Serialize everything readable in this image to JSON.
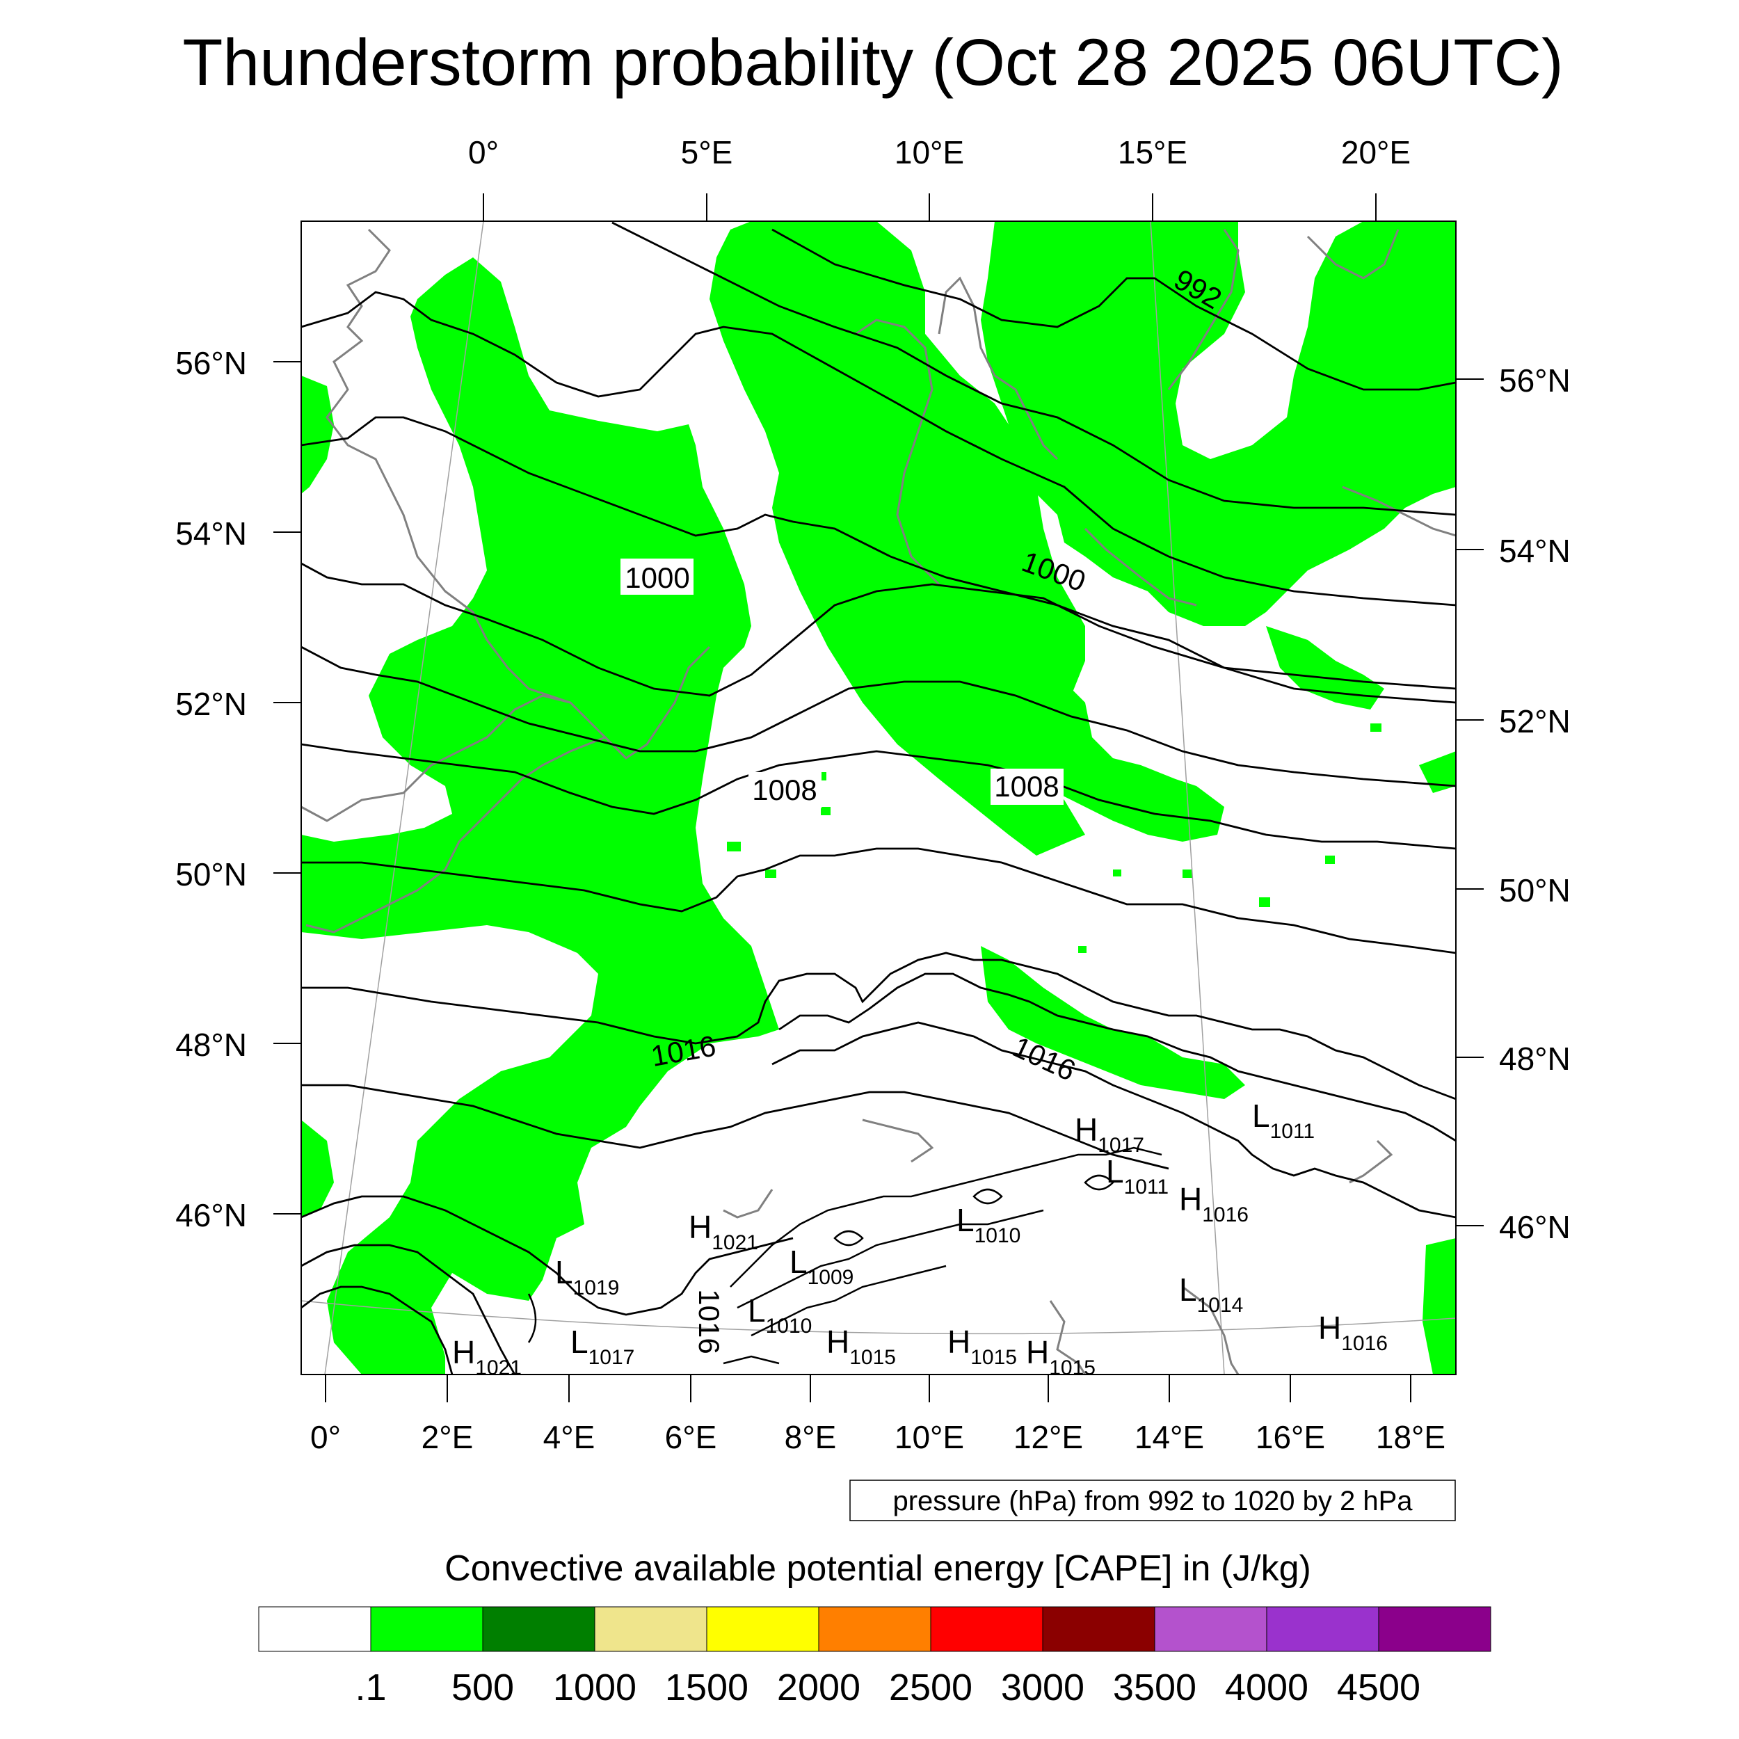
{
  "title": "Thunderstorm probability (Oct 28 2025 06UTC)",
  "top_lon_labels": [
    "0°",
    "5°E",
    "10°E",
    "15°E",
    "20°E"
  ],
  "bottom_lon_labels": [
    "0°",
    "2°E",
    "4°E",
    "6°E",
    "8°E",
    "10°E",
    "12°E",
    "14°E",
    "16°E",
    "18°E"
  ],
  "left_lat_labels": [
    "56°N",
    "54°N",
    "52°N",
    "50°N",
    "48°N",
    "46°N"
  ],
  "right_lat_labels": [
    "56°N",
    "54°N",
    "52°N",
    "50°N",
    "48°N",
    "46°N"
  ],
  "isobar_labels": [
    "992",
    "1000",
    "1000",
    "1008",
    "1008",
    "1016",
    "1016",
    "1016"
  ],
  "pressure_centers": [
    {
      "type": "H",
      "value": "1017"
    },
    {
      "type": "L",
      "value": "1011"
    },
    {
      "type": "L",
      "value": "1011"
    },
    {
      "type": "H",
      "value": "1016"
    },
    {
      "type": "H",
      "value": "1021"
    },
    {
      "type": "L",
      "value": "1010"
    },
    {
      "type": "L",
      "value": "1019"
    },
    {
      "type": "L",
      "value": "1009"
    },
    {
      "type": "L",
      "value": "1010"
    },
    {
      "type": "L",
      "value": "1014"
    },
    {
      "type": "H",
      "value": "1016"
    },
    {
      "type": "H",
      "value": "1021"
    },
    {
      "type": "L",
      "value": "1017"
    },
    {
      "type": "H",
      "value": "1015"
    },
    {
      "type": "H",
      "value": "1015"
    },
    {
      "type": "H",
      "value": "1015"
    }
  ],
  "pressure_note": "pressure (hPa) from 992 to 1020 by 2 hPa",
  "colorbar": {
    "title": "Convective available potential energy [CAPE] in (J/kg)",
    "colors": [
      "#ffffff",
      "#00ff00",
      "#007f00",
      "#efe58c",
      "#ffff00",
      "#ff7f00",
      "#ff0000",
      "#8b0000",
      "#b452cd",
      "#9a32cd",
      "#8b008b"
    ],
    "labels": [
      ".1",
      "500",
      "1000",
      "1500",
      "2000",
      "2500",
      "3000",
      "3500",
      "4000",
      "4500"
    ]
  },
  "map_colors": {
    "cape_fill": "#00ff00",
    "isobar": "#000000",
    "coastline": "#808080",
    "graticule": "#a0a0a0"
  }
}
